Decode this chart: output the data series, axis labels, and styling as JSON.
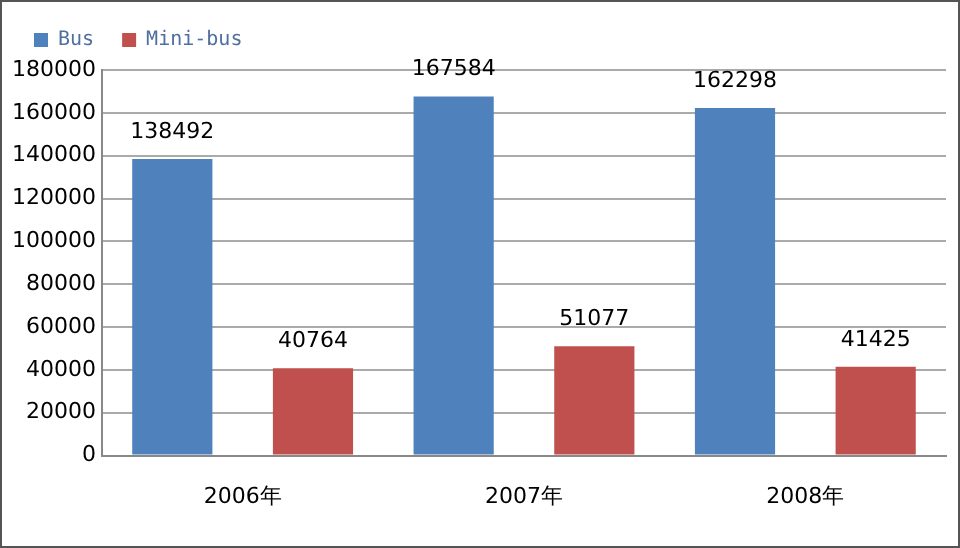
{
  "chart_data": {
    "type": "bar",
    "categories": [
      "2006年",
      "2007年",
      "2008年"
    ],
    "series": [
      {
        "name": "Bus",
        "color": "#4f81bd",
        "values": [
          138492,
          167584,
          162298
        ]
      },
      {
        "name": "Mini-bus",
        "color": "#c0504d",
        "values": [
          40764,
          51077,
          41425
        ]
      }
    ],
    "ylim": [
      0,
      180000
    ],
    "yticks": [
      0,
      20000,
      40000,
      60000,
      80000,
      100000,
      120000,
      140000,
      160000,
      180000
    ],
    "grid": "y",
    "legend": "top left",
    "data_labels": true
  }
}
